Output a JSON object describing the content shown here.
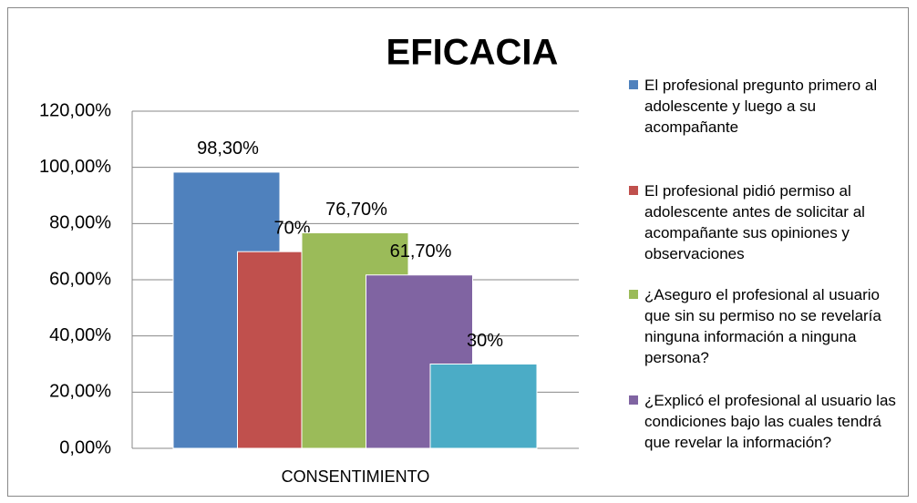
{
  "chart_data": {
    "type": "bar",
    "title": "EFICACIA",
    "categories": [
      "CONSENTIMIENTO"
    ],
    "series": [
      {
        "name": "El profesional pregunto primero al adolescente y luego a su acompañante",
        "color": "#4f81bd",
        "values": [
          98.3
        ],
        "value_labels": [
          "98,30%"
        ]
      },
      {
        "name": "El profesional pidió permiso al adolescente antes de solicitar al acompañante sus opiniones y observaciones",
        "color": "#c0504d",
        "values": [
          70
        ],
        "value_labels": [
          "70%"
        ]
      },
      {
        "name": "¿Aseguro el profesional al usuario que sin su permiso no se revelaría ninguna información a ninguna persona?",
        "color": "#9bbb59",
        "values": [
          76.7
        ],
        "value_labels": [
          "76,70%"
        ]
      },
      {
        "name": "¿Explicó el profesional al usuario las condiciones bajo las cuales tendrá que revelar la información?",
        "color": "#8064a2",
        "values": [
          61.7
        ],
        "value_labels": [
          "61,70%"
        ]
      },
      {
        "color": "#4bacc6",
        "values": [
          30
        ],
        "value_labels": [
          "30%"
        ]
      }
    ],
    "ylim": [
      0,
      120
    ],
    "yticks": [
      {
        "value": 0,
        "label": "0,00%"
      },
      {
        "value": 20,
        "label": "20,00%"
      },
      {
        "value": 40,
        "label": "40,00%"
      },
      {
        "value": 60,
        "label": "60,00%"
      },
      {
        "value": 80,
        "label": "80,00%"
      },
      {
        "value": 100,
        "label": "100,00%"
      },
      {
        "value": 120,
        "label": "120,00%"
      }
    ],
    "grid": true,
    "legend": "right"
  }
}
